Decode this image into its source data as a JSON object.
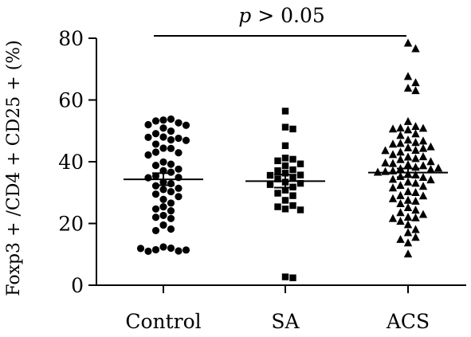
{
  "chart_data": {
    "type": "scatter",
    "subtype": "dot-plot-with-mean-and-sem",
    "title": "",
    "xlabel": "",
    "ylabel": "Foxp3 + /CD4 + CD25 + (%)",
    "ylim": [
      0,
      80
    ],
    "yticks": [
      "0",
      "20",
      "40",
      "60",
      "80"
    ],
    "grid": false,
    "legend": "none",
    "categories": [
      "Control",
      "SA",
      "ACS"
    ],
    "annotation": {
      "text_italic": "p",
      "text_rest": " > 0.05",
      "spans": [
        "Control",
        "ACS"
      ]
    },
    "series": [
      {
        "category": "Control",
        "marker": "circle",
        "mean": 34.3,
        "sem_upper": 36.3,
        "sem_lower": 32.4,
        "values": [
          53.5,
          53.8,
          53.2,
          52.6,
          52.0,
          51.8,
          50.9,
          49.9,
          49.1,
          48.0,
          47.6,
          47.9,
          47.1,
          46.9,
          45.7,
          44.4,
          44.3,
          43.1,
          42.9,
          42.2,
          39.9,
          39.2,
          38.8,
          37.6,
          37.1,
          36.6,
          35.4,
          34.9,
          34.8,
          33.4,
          32.9,
          32.2,
          31.4,
          31.0,
          30.3,
          29.5,
          28.7,
          27.8,
          26.6,
          25.4,
          24.7,
          24.1,
          22.6,
          22.0,
          21.6,
          19.5,
          18.2,
          17.7,
          12.4,
          12.0,
          11.5,
          11.1,
          11.0,
          11.4,
          11.9
        ]
      },
      {
        "category": "SA",
        "marker": "square",
        "mean": 33.7,
        "sem_upper": 35.8,
        "sem_lower": 31.6,
        "values": [
          56.4,
          51.2,
          50.6,
          45.2,
          41.2,
          40.8,
          40.3,
          39.3,
          38.7,
          37.4,
          37.1,
          36.3,
          35.7,
          35.6,
          34.9,
          34.4,
          33.4,
          33.0,
          32.6,
          31.8,
          30.8,
          29.8,
          29.0,
          27.5,
          25.8,
          25.4,
          24.7,
          24.4,
          2.7,
          2.4
        ]
      },
      {
        "category": "ACS",
        "marker": "triangle",
        "mean": 36.5,
        "sem_upper": 37.8,
        "sem_lower": 35.0,
        "values": [
          78.4,
          76.6,
          67.6,
          65.6,
          63.8,
          63.0,
          53.0,
          51.4,
          50.9,
          50.3,
          50.8,
          50.6,
          49.0,
          48.5,
          47.0,
          46.7,
          46.2,
          45.9,
          45.7,
          44.8,
          44.5,
          44.3,
          43.7,
          43.6,
          43.1,
          42.3,
          41.5,
          41.6,
          41.0,
          40.7,
          40.0,
          39.4,
          39.6,
          39.0,
          38.7,
          38.2,
          37.7,
          37.9,
          37.5,
          37.0,
          36.8,
          36.0,
          36.6,
          35.7,
          35.2,
          34.9,
          34.3,
          34.1,
          33.4,
          33.0,
          32.3,
          32.0,
          31.5,
          30.3,
          30.0,
          29.0,
          28.9,
          28.0,
          27.5,
          27.2,
          26.4,
          25.1,
          24.3,
          23.5,
          22.9,
          22.0,
          21.8,
          21.6,
          20.7,
          19.6,
          18.0,
          17.0,
          15.5,
          14.8,
          13.7,
          10.1
        ]
      }
    ]
  }
}
